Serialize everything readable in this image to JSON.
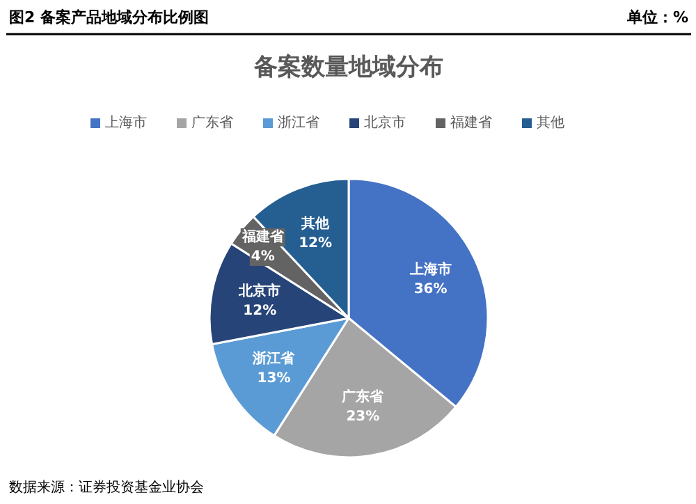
{
  "chart_data": {
    "type": "pie",
    "title": "图2 备案产品地域分布比例图",
    "subtitle": "备案数量地域分布",
    "ylabel": "单位：%",
    "categories": [
      "上海市",
      "广东省",
      "浙江省",
      "北京市",
      "福建省",
      "其他"
    ],
    "values": [
      36,
      23,
      13,
      12,
      4,
      12
    ],
    "value_labels": [
      "36%",
      "23%",
      "13%",
      "12%",
      "4%",
      "12%"
    ],
    "colors": [
      "#4472c4",
      "#a5a5a5",
      "#5b9bd5",
      "#264478",
      "#636363",
      "#255e91"
    ],
    "legend": "top",
    "annotations": [
      "数据来源：证券投资基金业协会"
    ]
  }
}
